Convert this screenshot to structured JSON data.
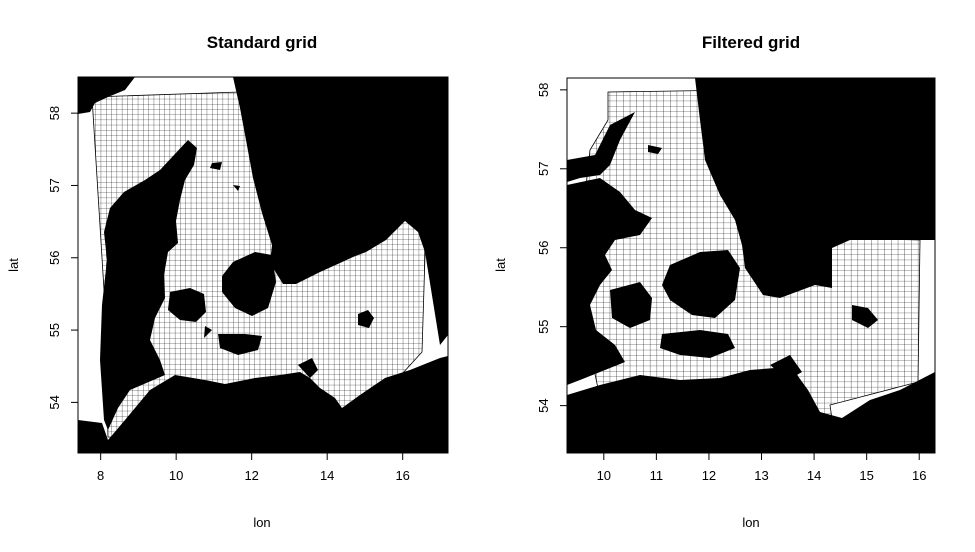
{
  "chart_data": [
    {
      "type": "map",
      "title": "Standard grid",
      "xlabel": "lon",
      "ylabel": "lat",
      "xlim": [
        7.4,
        17.2
      ],
      "ylim": [
        53.3,
        58.5
      ],
      "xticks": [
        "8",
        "10",
        "12",
        "14",
        "16"
      ],
      "yticks": [
        "54",
        "55",
        "56",
        "57",
        "58"
      ],
      "xtick_values": [
        8,
        10,
        12,
        14,
        16
      ],
      "ytick_values": [
        54,
        55,
        56,
        57,
        58
      ],
      "grid_extent": {
        "lon": [
          7.8,
          16.8
        ],
        "lat": [
          53.45,
          58.02
        ]
      }
    },
    {
      "type": "map",
      "title": "Filtered grid",
      "xlabel": "lon",
      "ylabel": "lat",
      "xlim": [
        9.3,
        16.3
      ],
      "ylim": [
        53.4,
        58.15
      ],
      "xticks": [
        "10",
        "11",
        "12",
        "13",
        "14",
        "15",
        "16"
      ],
      "yticks": [
        "54",
        "55",
        "56",
        "57",
        "58"
      ],
      "xtick_values": [
        10,
        11,
        12,
        13,
        14,
        15,
        16
      ],
      "ytick_values": [
        54,
        55,
        56,
        57,
        58
      ],
      "grid_extent": {
        "lon": [
          10.1,
          16.0
        ],
        "lat": [
          53.75,
          58.05
        ]
      }
    }
  ],
  "colors": {
    "land": "#000000",
    "grid": "#000000",
    "background": "#ffffff"
  }
}
